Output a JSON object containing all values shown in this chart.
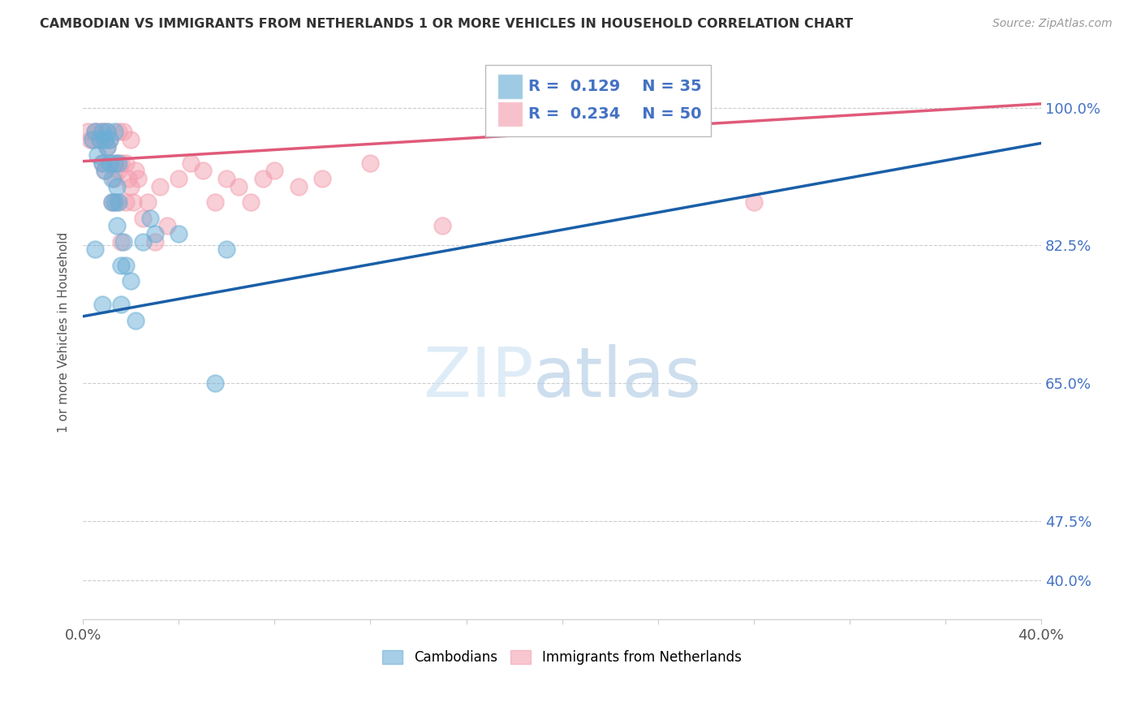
{
  "title": "CAMBODIAN VS IMMIGRANTS FROM NETHERLANDS 1 OR MORE VEHICLES IN HOUSEHOLD CORRELATION CHART",
  "source": "Source: ZipAtlas.com",
  "ylabel": "1 or more Vehicles in Household",
  "ytick_vals": [
    0.4,
    0.475,
    0.65,
    0.825,
    1.0
  ],
  "ytick_labels": [
    "40.0%",
    "47.5%",
    "65.0%",
    "82.5%",
    "100.0%"
  ],
  "xlim": [
    0.0,
    0.4
  ],
  "ylim": [
    0.35,
    1.08
  ],
  "legend_cambodians": "Cambodians",
  "legend_netherlands": "Immigrants from Netherlands",
  "R_cambodian": 0.129,
  "N_cambodian": 35,
  "R_netherlands": 0.234,
  "N_netherlands": 50,
  "color_cambodian": "#6baed6",
  "color_netherlands": "#f4a0b0",
  "trendline_color_cambodian": "#1a5fa8",
  "trendline_color_netherlands": "#e05a7a",
  "watermark_zip": "ZIP",
  "watermark_atlas": "atlas",
  "watermark_color_zip": "#c8ddf0",
  "watermark_color_atlas": "#a0c0e8",
  "trendline_cam_x0": 0.0,
  "trendline_cam_y0": 0.735,
  "trendline_cam_x1": 0.4,
  "trendline_cam_y1": 0.955,
  "trendline_neth_x0": 0.0,
  "trendline_neth_y0": 0.932,
  "trendline_neth_x1": 0.4,
  "trendline_neth_y1": 1.005,
  "cambodian_x": [
    0.004,
    0.005,
    0.006,
    0.007,
    0.008,
    0.008,
    0.009,
    0.009,
    0.01,
    0.01,
    0.011,
    0.011,
    0.012,
    0.012,
    0.013,
    0.013,
    0.013,
    0.014,
    0.014,
    0.015,
    0.015,
    0.016,
    0.016,
    0.017,
    0.018,
    0.02,
    0.022,
    0.025,
    0.028,
    0.03,
    0.04,
    0.055,
    0.06,
    0.005,
    0.008
  ],
  "cambodian_y": [
    0.96,
    0.97,
    0.94,
    0.96,
    0.97,
    0.93,
    0.96,
    0.92,
    0.95,
    0.97,
    0.93,
    0.96,
    0.88,
    0.91,
    0.93,
    0.88,
    0.97,
    0.85,
    0.9,
    0.88,
    0.93,
    0.75,
    0.8,
    0.83,
    0.8,
    0.78,
    0.73,
    0.83,
    0.86,
    0.84,
    0.84,
    0.65,
    0.82,
    0.82,
    0.75
  ],
  "netherlands_x": [
    0.002,
    0.003,
    0.004,
    0.005,
    0.006,
    0.007,
    0.008,
    0.008,
    0.009,
    0.009,
    0.01,
    0.01,
    0.011,
    0.011,
    0.012,
    0.013,
    0.014,
    0.014,
    0.015,
    0.015,
    0.016,
    0.016,
    0.017,
    0.018,
    0.018,
    0.019,
    0.02,
    0.02,
    0.021,
    0.022,
    0.023,
    0.025,
    0.027,
    0.03,
    0.032,
    0.035,
    0.04,
    0.045,
    0.05,
    0.055,
    0.06,
    0.065,
    0.07,
    0.075,
    0.08,
    0.09,
    0.1,
    0.12,
    0.15,
    0.28
  ],
  "netherlands_y": [
    0.97,
    0.96,
    0.96,
    0.97,
    0.97,
    0.96,
    0.97,
    0.93,
    0.96,
    0.92,
    0.95,
    0.97,
    0.93,
    0.96,
    0.88,
    0.91,
    0.93,
    0.88,
    0.97,
    0.92,
    0.93,
    0.83,
    0.97,
    0.93,
    0.88,
    0.91,
    0.96,
    0.9,
    0.88,
    0.92,
    0.91,
    0.86,
    0.88,
    0.83,
    0.9,
    0.85,
    0.91,
    0.93,
    0.92,
    0.88,
    0.91,
    0.9,
    0.88,
    0.91,
    0.92,
    0.9,
    0.91,
    0.93,
    0.85,
    0.88
  ]
}
